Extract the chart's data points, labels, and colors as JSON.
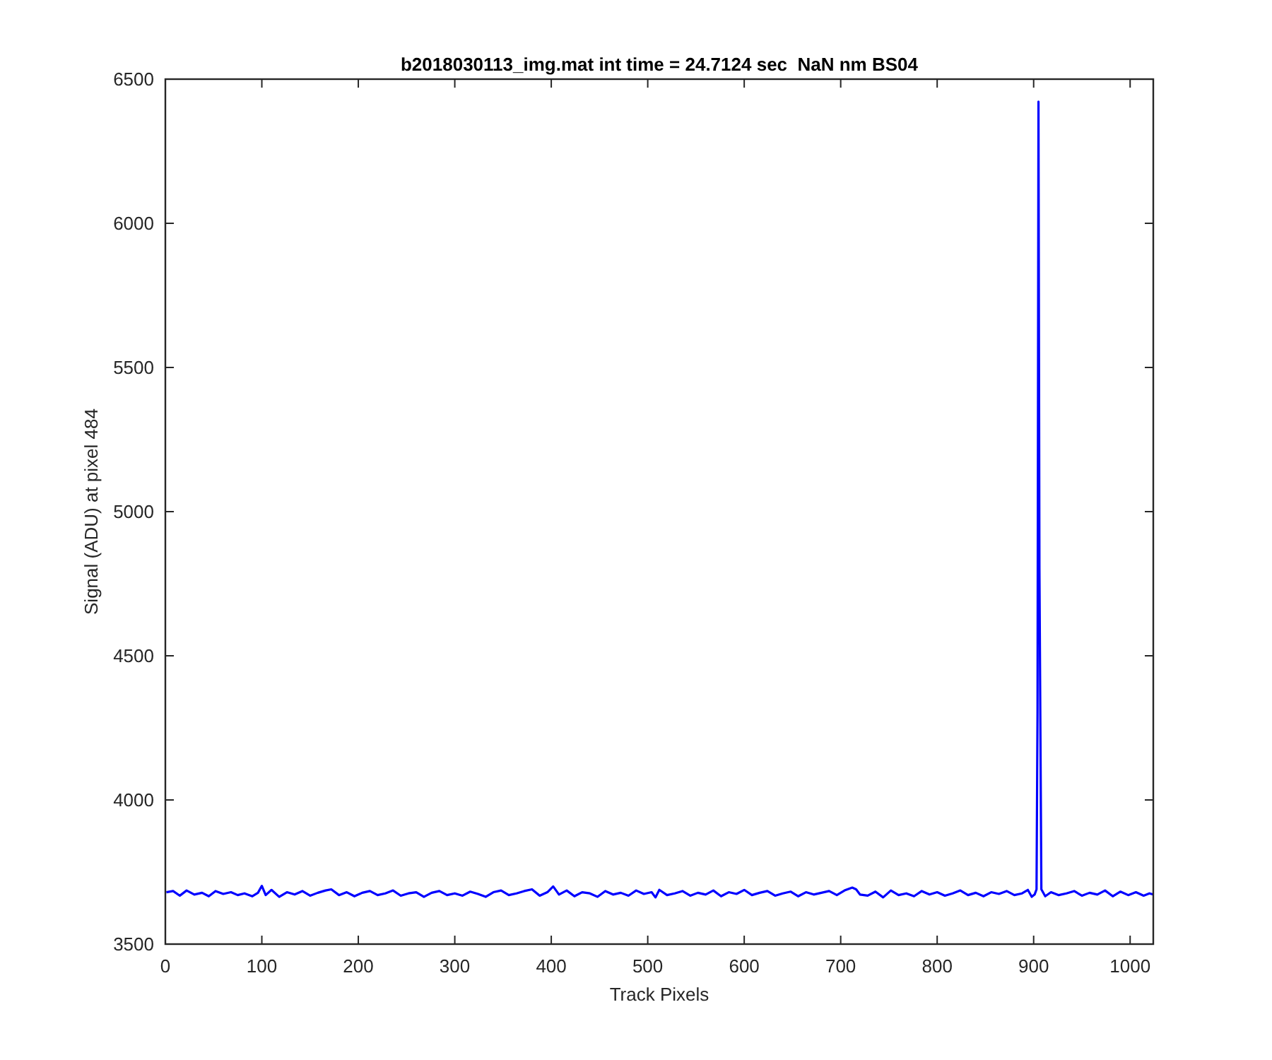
{
  "chart_data": {
    "type": "line",
    "title": "b2018030113_img.mat int time = 24.7124 sec  NaN nm BS04",
    "xlabel": "Track Pixels",
    "ylabel": "Signal (ADU) at pixel 484",
    "xlim": [
      0,
      1024
    ],
    "ylim": [
      3500,
      6500
    ],
    "xticks": [
      0,
      100,
      200,
      300,
      400,
      500,
      600,
      700,
      800,
      900,
      1000
    ],
    "yticks": [
      3500,
      4000,
      4500,
      5000,
      5500,
      6000,
      6500
    ],
    "grid": false,
    "line_style": "solid",
    "marker": "none",
    "series": [
      {
        "color": "#0000ff",
        "x": [
          1,
          8,
          15,
          22,
          30,
          38,
          45,
          52,
          60,
          68,
          75,
          82,
          90,
          96,
          100,
          104,
          110,
          118,
          126,
          134,
          142,
          150,
          158,
          166,
          172,
          180,
          188,
          196,
          204,
          212,
          220,
          228,
          236,
          244,
          252,
          260,
          268,
          276,
          284,
          292,
          300,
          308,
          316,
          324,
          332,
          340,
          348,
          356,
          364,
          372,
          380,
          388,
          396,
          402,
          408,
          416,
          424,
          432,
          440,
          448,
          456,
          464,
          472,
          480,
          488,
          496,
          504,
          508,
          512,
          520,
          528,
          536,
          544,
          552,
          560,
          568,
          576,
          584,
          592,
          600,
          608,
          616,
          624,
          632,
          640,
          648,
          656,
          664,
          672,
          680,
          688,
          696,
          704,
          712,
          716,
          720,
          728,
          736,
          744,
          752,
          760,
          768,
          776,
          784,
          792,
          800,
          808,
          816,
          824,
          832,
          840,
          848,
          856,
          864,
          872,
          880,
          888,
          894,
          898,
          901,
          903,
          904,
          905,
          906,
          908,
          912,
          918,
          926,
          934,
          942,
          950,
          958,
          966,
          974,
          982,
          990,
          998,
          1006,
          1014,
          1020,
          1024
        ],
        "values": [
          3680,
          3684,
          3668,
          3686,
          3672,
          3678,
          3666,
          3684,
          3674,
          3680,
          3670,
          3676,
          3666,
          3678,
          3702,
          3670,
          3688,
          3664,
          3680,
          3672,
          3684,
          3668,
          3678,
          3686,
          3690,
          3670,
          3680,
          3666,
          3678,
          3684,
          3670,
          3676,
          3686,
          3668,
          3676,
          3680,
          3664,
          3678,
          3684,
          3670,
          3676,
          3668,
          3682,
          3674,
          3664,
          3680,
          3686,
          3670,
          3676,
          3684,
          3690,
          3668,
          3680,
          3700,
          3672,
          3686,
          3666,
          3680,
          3676,
          3664,
          3684,
          3672,
          3678,
          3668,
          3686,
          3674,
          3680,
          3662,
          3688,
          3670,
          3676,
          3684,
          3668,
          3678,
          3672,
          3686,
          3666,
          3680,
          3674,
          3688,
          3670,
          3678,
          3684,
          3668,
          3676,
          3682,
          3666,
          3680,
          3672,
          3678,
          3684,
          3670,
          3686,
          3696,
          3690,
          3672,
          3668,
          3682,
          3662,
          3686,
          3670,
          3676,
          3666,
          3684,
          3672,
          3680,
          3668,
          3676,
          3686,
          3670,
          3678,
          3666,
          3680,
          3674,
          3684,
          3670,
          3676,
          3688,
          3664,
          3672,
          3690,
          4300,
          6422,
          4800,
          3690,
          3666,
          3680,
          3670,
          3676,
          3684,
          3668,
          3678,
          3672,
          3686,
          3666,
          3682,
          3670,
          3680,
          3668,
          3676,
          3672
        ]
      }
    ]
  }
}
